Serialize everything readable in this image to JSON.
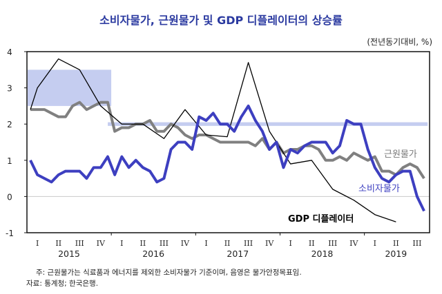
{
  "chart_data": {
    "type": "line",
    "title": "소비자물가, 근원물가 및 GDP 디플레이터의 상승률",
    "unit_label": "(전년동기대비, %)",
    "xlabel": "",
    "ylabel": "",
    "ylim": [
      -1,
      4
    ],
    "yticks": [
      4,
      3,
      2,
      1,
      0,
      -1
    ],
    "grid": false,
    "x_start": "2015-01",
    "x_months": 57,
    "quarter_labels": [
      "I",
      "II",
      "III",
      "IV",
      "I",
      "II",
      "III",
      "IV",
      "I",
      "II",
      "III",
      "IV",
      "I",
      "II",
      "III",
      "IV",
      "I",
      "II",
      "III"
    ],
    "year_labels": [
      {
        "label": "2015",
        "quarter_index": 1.5
      },
      {
        "label": "2016",
        "quarter_index": 5.5
      },
      {
        "label": "2017",
        "quarter_index": 9.5
      },
      {
        "label": "2018",
        "quarter_index": 13.5
      },
      {
        "label": "2019",
        "quarter_index": 17
      }
    ],
    "target_bands": [
      {
        "from_month": 0,
        "to_month": 11.5,
        "low": 2.5,
        "high": 3.5
      },
      {
        "from_month": 11.5,
        "to_month": 56.5,
        "low": 1.95,
        "high": 2.05
      }
    ],
    "series": [
      {
        "name": "소비자물가",
        "color": "#3d3fc0",
        "frequency": "monthly",
        "values": [
          1.0,
          0.6,
          0.5,
          0.4,
          0.6,
          0.7,
          0.7,
          0.7,
          0.5,
          0.8,
          0.8,
          1.1,
          0.6,
          1.1,
          0.8,
          1.0,
          0.8,
          0.7,
          0.4,
          0.5,
          1.3,
          1.5,
          1.5,
          1.3,
          2.2,
          2.1,
          2.3,
          2.0,
          2.0,
          1.8,
          2.2,
          2.5,
          2.1,
          1.8,
          1.3,
          1.5,
          0.8,
          1.3,
          1.2,
          1.4,
          1.5,
          1.5,
          1.5,
          1.2,
          1.4,
          2.1,
          2.0,
          2.0,
          1.3,
          0.8,
          0.5,
          0.4,
          0.6,
          0.7,
          0.7,
          0.0,
          -0.4
        ]
      },
      {
        "name": "근원물가",
        "color": "#808080",
        "frequency": "monthly",
        "values": [
          2.4,
          2.4,
          2.4,
          2.3,
          2.2,
          2.2,
          2.5,
          2.6,
          2.4,
          2.5,
          2.6,
          2.6,
          1.8,
          1.9,
          1.9,
          2.0,
          2.0,
          2.1,
          1.8,
          1.8,
          2.0,
          1.9,
          1.7,
          1.6,
          1.7,
          1.7,
          1.6,
          1.5,
          1.5,
          1.5,
          1.5,
          1.5,
          1.4,
          1.6,
          1.3,
          1.5,
          1.2,
          1.3,
          1.3,
          1.4,
          1.4,
          1.3,
          1.0,
          1.0,
          1.1,
          1.0,
          1.2,
          1.1,
          1.0,
          1.1,
          0.7,
          0.7,
          0.6,
          0.8,
          0.9,
          0.8,
          0.5
        ]
      },
      {
        "name": "GDP 디플레이터",
        "color": "#000000",
        "frequency": "quarterly",
        "points": [
          {
            "month": 0,
            "value": 2.4
          },
          {
            "month": 1,
            "value": 3.0
          },
          {
            "month": 4,
            "value": 3.8
          },
          {
            "month": 7,
            "value": 3.5
          },
          {
            "month": 10,
            "value": 2.5
          },
          {
            "month": 13,
            "value": 2.0
          },
          {
            "month": 16,
            "value": 2.0
          },
          {
            "month": 19,
            "value": 1.6
          },
          {
            "month": 22,
            "value": 2.4
          },
          {
            "month": 25,
            "value": 1.7
          },
          {
            "month": 28,
            "value": 1.65
          },
          {
            "month": 31,
            "value": 3.7
          },
          {
            "month": 34,
            "value": 1.8
          },
          {
            "month": 37,
            "value": 0.9
          },
          {
            "month": 40,
            "value": 1.0
          },
          {
            "month": 43,
            "value": 0.2
          },
          {
            "month": 46,
            "value": -0.1
          },
          {
            "month": 49,
            "value": -0.5
          },
          {
            "month": 52,
            "value": -0.7
          }
        ]
      }
    ],
    "annotations": [
      {
        "text": "근원물가",
        "series": "근원물가",
        "near_month": 54,
        "near_value": 1.2
      },
      {
        "text": "소비자물가",
        "series": "소비자물가",
        "near_month": 52,
        "near_value": 0.15
      },
      {
        "text": "GDP 디플레이터",
        "series": "GDP 디플레이터",
        "near_month": 39,
        "near_value": -0.6
      }
    ]
  },
  "notes": {
    "note": "주: 근원물가는 식료품과 에너지를 제외한 소비자물가 기준이며, 음영은 물가안정목표임.",
    "source": "자료: 통계청; 한국은행."
  }
}
